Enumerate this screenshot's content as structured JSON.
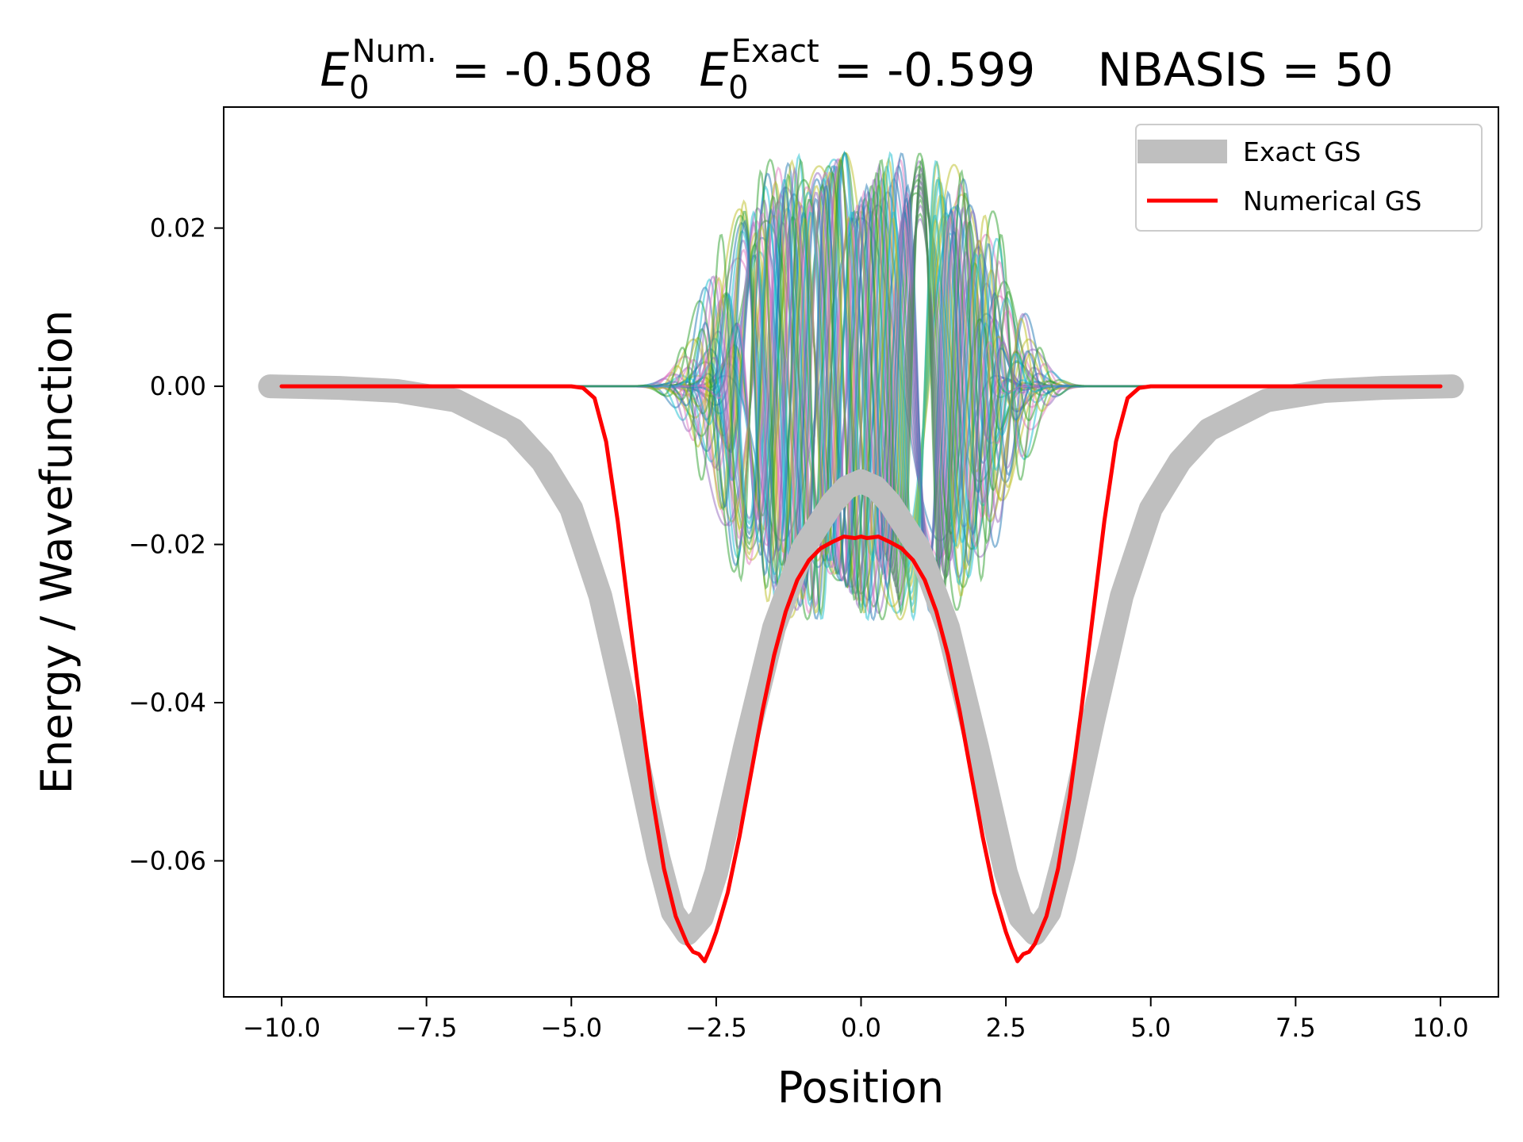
{
  "chart_data": {
    "type": "line",
    "title": {
      "num_symbol": "E",
      "num_sub": "0",
      "num_sup": "Num.",
      "num_value": " = -0.508",
      "exact_symbol": "E",
      "exact_sub": "0",
      "exact_sup": "Exact",
      "exact_value": " = -0.599",
      "nbasis": "NBASIS = 50"
    },
    "xlabel": "Position",
    "ylabel": "Energy / Wavefunction",
    "xlim": [
      -11.0,
      11.0
    ],
    "ylim": [
      -0.0772,
      0.0353
    ],
    "xticks": [
      -10.0,
      -7.5,
      -5.0,
      -2.5,
      0.0,
      2.5,
      5.0,
      7.5,
      10.0
    ],
    "xtick_labels": [
      "−10.0",
      "−7.5",
      "−5.0",
      "−2.5",
      "0.0",
      "2.5",
      "5.0",
      "7.5",
      "10.0"
    ],
    "yticks": [
      0.02,
      0.0,
      -0.02,
      -0.04,
      -0.06
    ],
    "ytick_labels": [
      "0.02",
      "0.00",
      "−0.02",
      "−0.04",
      "−0.06"
    ],
    "grid": false,
    "legend": {
      "placement": "top-right",
      "entries": [
        "Exact GS",
        "Numerical GS"
      ]
    },
    "series": [
      {
        "name": "Exact GS",
        "color": "#bfbfbf",
        "x": [
          -10.2,
          -9.0,
          -8.0,
          -7.0,
          -6.0,
          -5.5,
          -5.0,
          -4.5,
          -4.0,
          -3.5,
          -3.25,
          -3.0,
          -2.75,
          -2.5,
          -2.0,
          -1.5,
          -1.0,
          -0.5,
          -0.25,
          0.0,
          0.25,
          0.5,
          1.0,
          1.5,
          2.0,
          2.5,
          2.75,
          3.0,
          3.25,
          3.5,
          4.0,
          4.5,
          5.0,
          5.5,
          6.0,
          7.0,
          8.0,
          9.0,
          10.2
        ],
        "y": [
          0.0,
          -0.0002,
          -0.0006,
          -0.0018,
          -0.0055,
          -0.0095,
          -0.0155,
          -0.0265,
          -0.0425,
          -0.0595,
          -0.0665,
          -0.0692,
          -0.0672,
          -0.0615,
          -0.0455,
          -0.0305,
          -0.0205,
          -0.0148,
          -0.0128,
          -0.012,
          -0.0128,
          -0.0148,
          -0.0205,
          -0.0305,
          -0.0455,
          -0.0615,
          -0.0672,
          -0.0692,
          -0.0665,
          -0.0595,
          -0.0425,
          -0.0265,
          -0.0155,
          -0.0095,
          -0.0055,
          -0.0018,
          -0.0006,
          -0.0002,
          0.0
        ]
      },
      {
        "name": "Numerical GS",
        "color": "#ff0000",
        "x": [
          -10.0,
          -6.0,
          -5.0,
          -4.8,
          -4.6,
          -4.4,
          -4.2,
          -4.0,
          -3.8,
          -3.6,
          -3.4,
          -3.2,
          -3.0,
          -2.9,
          -2.8,
          -2.7,
          -2.6,
          -2.5,
          -2.3,
          -2.1,
          -1.9,
          -1.7,
          -1.5,
          -1.3,
          -1.1,
          -0.9,
          -0.7,
          -0.5,
          -0.3,
          -0.1,
          0.0,
          0.1,
          0.3,
          0.5,
          0.7,
          0.9,
          1.1,
          1.3,
          1.5,
          1.7,
          1.9,
          2.1,
          2.3,
          2.5,
          2.6,
          2.7,
          2.8,
          2.9,
          3.0,
          3.2,
          3.4,
          3.6,
          3.8,
          4.0,
          4.2,
          4.4,
          4.6,
          4.8,
          5.0,
          6.0,
          10.0
        ],
        "y": [
          0.0,
          0.0,
          0.0,
          -0.0002,
          -0.0015,
          -0.007,
          -0.017,
          -0.029,
          -0.041,
          -0.052,
          -0.061,
          -0.067,
          -0.0705,
          -0.0715,
          -0.0718,
          -0.0727,
          -0.071,
          -0.069,
          -0.064,
          -0.057,
          -0.049,
          -0.041,
          -0.034,
          -0.0285,
          -0.0245,
          -0.022,
          -0.0205,
          -0.0197,
          -0.019,
          -0.0192,
          -0.019,
          -0.0192,
          -0.019,
          -0.0197,
          -0.0205,
          -0.022,
          -0.0245,
          -0.0285,
          -0.034,
          -0.041,
          -0.049,
          -0.057,
          -0.064,
          -0.069,
          -0.071,
          -0.0727,
          -0.0718,
          -0.0715,
          -0.0705,
          -0.067,
          -0.061,
          -0.052,
          -0.041,
          -0.029,
          -0.017,
          -0.007,
          -0.0015,
          -0.0002,
          0.0,
          0.0,
          0.0
        ]
      }
    ],
    "basis_functions": {
      "count": 50,
      "description_of_form": "Gaussian-enveloped oscillations centered at 0, amplitude ~0.03, spanning roughly -5 to 5",
      "palette": [
        "#1f77b4",
        "#2ca02c",
        "#bcbd22",
        "#e377c2",
        "#9467bd",
        "#17becf"
      ],
      "opacity": 0.5
    }
  }
}
